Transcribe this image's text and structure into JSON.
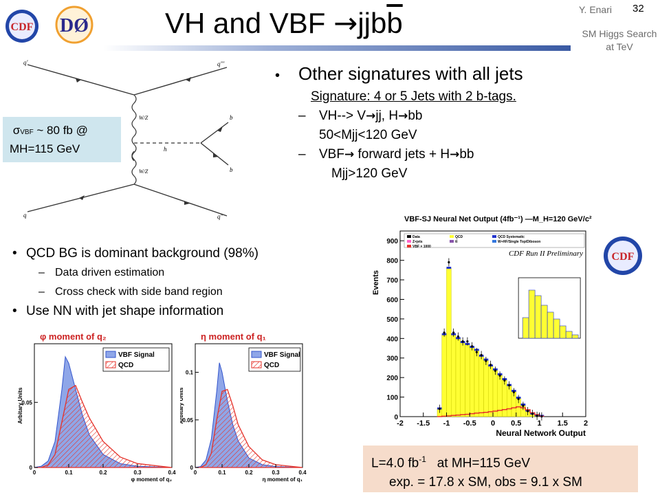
{
  "header": {
    "title_main": "VH and VBF ",
    "title_arrow": "→",
    "title_jj": "jjb",
    "title_bbar": "b",
    "author": "Y. Enari",
    "page_number": "32",
    "subtitle": "SM Higgs Search at TeV"
  },
  "logos": {
    "left": "CDF",
    "right": "DØ"
  },
  "feynman": {
    "labels": [
      "q'",
      "q'''",
      "W/Z",
      "h",
      "b",
      "b",
      "W/Z",
      "q",
      "q''"
    ]
  },
  "sigma_box": {
    "sigma": "σ",
    "sub": "VBF",
    "rest": " ~ 80 fb @",
    "line2": "MH=115 GeV"
  },
  "right_bullets": {
    "b1": "Other signatures with all jets",
    "signature": "Signature: 4 or 5 Jets with 2 b-tags.",
    "vh_pre": "VH--> V",
    "vh_jj": "jj, H",
    "vh_bb": "bb",
    "vh_range": "50<Mjj<120 GeV",
    "vbf_pre": "VBF",
    "vbf_mid": " forward jets + H",
    "vbf_bb": "bb",
    "vbf_cut": "Mjj>120 GeV",
    "dash": "–",
    "arrow": "→"
  },
  "left_bullets": {
    "b1": "QCD BG is dominant background (98%)",
    "s1": "Data driven estimation",
    "s2": "Cross check with side band region",
    "b2": "Use NN with jet shape information"
  },
  "lumi_box": {
    "l1_pre": "L=4.0 fb",
    "l1_sup": "-1",
    "l1_post": "   at MH=115 GeV",
    "l2": "exp. = 17.8 x SM,  obs = 9.1 x SM"
  },
  "colors": {
    "blue_fill": "#8fa6e8",
    "red_line": "#e5322a",
    "yellow": "#ffff33",
    "sigma_bg": "#cfe6ee",
    "lumi_bg": "#f6dccb"
  },
  "chart_data": [
    {
      "type": "area",
      "title": "φ moment of q₂",
      "xlabel": "φ moment of q₂",
      "ylabel": "Arbitary Units",
      "xlim": [
        0,
        0.4
      ],
      "ylim": [
        0,
        0.095
      ],
      "xticks": [
        "0",
        "0.1",
        "0.2",
        "0.3",
        "0.4"
      ],
      "yticks": [
        "0",
        "0.05"
      ],
      "legend": [
        "VBF Signal",
        "QCD"
      ],
      "series": [
        {
          "name": "VBF Signal",
          "x": [
            0.0,
            0.02,
            0.04,
            0.06,
            0.08,
            0.09,
            0.1,
            0.12,
            0.14,
            0.16,
            0.2,
            0.25,
            0.3,
            0.4
          ],
          "values": [
            0,
            0.001,
            0.005,
            0.02,
            0.06,
            0.085,
            0.08,
            0.06,
            0.04,
            0.025,
            0.01,
            0.003,
            0.001,
            0
          ]
        },
        {
          "name": "QCD",
          "x": [
            0.0,
            0.02,
            0.04,
            0.06,
            0.08,
            0.1,
            0.12,
            0.14,
            0.16,
            0.2,
            0.25,
            0.3,
            0.4
          ],
          "values": [
            0,
            0.0,
            0.002,
            0.01,
            0.035,
            0.06,
            0.063,
            0.05,
            0.038,
            0.02,
            0.008,
            0.003,
            0
          ]
        }
      ]
    },
    {
      "type": "area",
      "title": "η moment of q₁",
      "xlabel": "η moment of q₁",
      "ylabel": "Arbitary Units",
      "xlim": [
        0,
        0.4
      ],
      "ylim": [
        0,
        0.13
      ],
      "xticks": [
        "0",
        "0.1",
        "0.2",
        "0.3",
        "0.4"
      ],
      "yticks": [
        "0",
        "0.05",
        "0.1"
      ],
      "legend": [
        "VBF Signal",
        "QCD"
      ],
      "series": [
        {
          "name": "VBF Signal",
          "x": [
            0.0,
            0.02,
            0.04,
            0.06,
            0.08,
            0.09,
            0.1,
            0.12,
            0.14,
            0.16,
            0.2,
            0.25,
            0.3,
            0.4
          ],
          "values": [
            0,
            0.001,
            0.008,
            0.03,
            0.08,
            0.11,
            0.1,
            0.07,
            0.045,
            0.028,
            0.01,
            0.003,
            0.001,
            0
          ]
        },
        {
          "name": "QCD",
          "x": [
            0.0,
            0.02,
            0.04,
            0.06,
            0.08,
            0.1,
            0.12,
            0.14,
            0.16,
            0.2,
            0.25,
            0.3,
            0.4
          ],
          "values": [
            0,
            0.0,
            0.003,
            0.015,
            0.05,
            0.08,
            0.082,
            0.065,
            0.045,
            0.022,
            0.008,
            0.003,
            0
          ]
        }
      ]
    },
    {
      "type": "bar",
      "title": "VBF-SJ Neural Net Output (4fb⁻¹) —M_H=120 GeV/c²",
      "annotation": "CDF Run II Preliminary",
      "xlabel": "Neural Network Output",
      "ylabel": "Events",
      "xlim": [
        -2,
        2
      ],
      "ylim": [
        0,
        950
      ],
      "xticks": [
        "-2",
        "-1.5",
        "-1",
        "-0.5",
        "0",
        "0.5",
        "1",
        "1.5",
        "2"
      ],
      "yticks": [
        "0",
        "100",
        "200",
        "300",
        "400",
        "500",
        "600",
        "700",
        "800",
        "900"
      ],
      "legend": [
        "Data",
        "QCD",
        "QCD Systematic",
        "Z+jets",
        "tt̄",
        "W+HF/Single Top/Diboson",
        "VBF × 1000"
      ],
      "bin_edges": [
        -1.2,
        -1.1,
        -1.0,
        -0.9,
        -0.8,
        -0.7,
        -0.6,
        -0.5,
        -0.4,
        -0.3,
        -0.2,
        -0.1,
        0.0,
        0.1,
        0.2,
        0.3,
        0.4,
        0.5,
        0.6,
        0.7,
        0.8,
        0.9,
        1.0,
        1.1
      ],
      "series": [
        {
          "name": "QCD",
          "values": [
            40,
            420,
            760,
            420,
            400,
            380,
            370,
            355,
            340,
            310,
            290,
            260,
            240,
            215,
            190,
            160,
            130,
            95,
            60,
            30,
            15,
            5,
            2
          ]
        },
        {
          "name": "Data",
          "values": [
            40,
            430,
            790,
            430,
            410,
            385,
            385,
            360,
            330,
            315,
            285,
            265,
            235,
            210,
            185,
            160,
            125,
            90,
            55,
            28,
            14,
            4,
            1
          ]
        },
        {
          "name": "VBF × 1000",
          "values": [
            0,
            2,
            4,
            6,
            8,
            10,
            12,
            15,
            18,
            20,
            22,
            25,
            28,
            32,
            36,
            40,
            45,
            50,
            45,
            35,
            20,
            10,
            2
          ]
        }
      ]
    }
  ]
}
